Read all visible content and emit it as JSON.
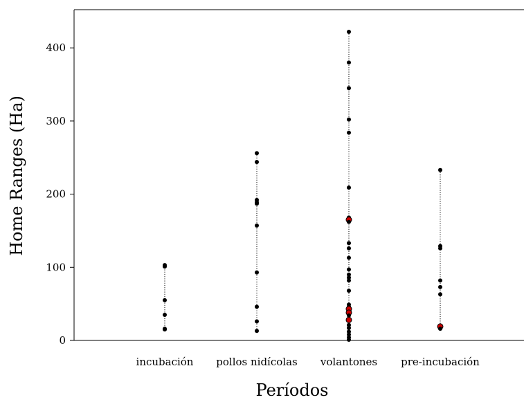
{
  "chart_data": {
    "type": "scatter",
    "title": "",
    "xlabel": "Períodos",
    "ylabel": "Home Ranges (Ha)",
    "categories": [
      "incubación",
      "pollos nidícolas",
      "volantones",
      "pre-incubación"
    ],
    "ylim": [
      0,
      450
    ],
    "yticks": [
      0,
      100,
      200,
      300,
      400
    ],
    "grid": false,
    "colors": {
      "default_point": "#000000",
      "highlight_point": "#cc0000",
      "stem": "#000000"
    },
    "series": [
      {
        "category": "incubación",
        "points": [
          {
            "y": 103,
            "highlight": false
          },
          {
            "y": 101,
            "highlight": false
          },
          {
            "y": 55,
            "highlight": false
          },
          {
            "y": 35,
            "highlight": false
          },
          {
            "y": 16,
            "highlight": false
          },
          {
            "y": 15,
            "highlight": false
          }
        ]
      },
      {
        "category": "pollos nidícolas",
        "points": [
          {
            "y": 256,
            "highlight": false
          },
          {
            "y": 244,
            "highlight": false
          },
          {
            "y": 192,
            "highlight": false
          },
          {
            "y": 189,
            "highlight": false
          },
          {
            "y": 187,
            "highlight": false
          },
          {
            "y": 157,
            "highlight": false
          },
          {
            "y": 93,
            "highlight": false
          },
          {
            "y": 46,
            "highlight": false
          },
          {
            "y": 26,
            "highlight": false
          },
          {
            "y": 13,
            "highlight": false
          }
        ]
      },
      {
        "category": "volantones",
        "points": [
          {
            "y": 422,
            "highlight": false
          },
          {
            "y": 380,
            "highlight": false
          },
          {
            "y": 345,
            "highlight": false
          },
          {
            "y": 302,
            "highlight": false
          },
          {
            "y": 284,
            "highlight": false
          },
          {
            "y": 209,
            "highlight": false
          },
          {
            "y": 168,
            "highlight": false
          },
          {
            "y": 165,
            "highlight": true
          },
          {
            "y": 162,
            "highlight": false
          },
          {
            "y": 133,
            "highlight": false
          },
          {
            "y": 126,
            "highlight": false
          },
          {
            "y": 113,
            "highlight": false
          },
          {
            "y": 97,
            "highlight": false
          },
          {
            "y": 90,
            "highlight": false
          },
          {
            "y": 86,
            "highlight": false
          },
          {
            "y": 82,
            "highlight": false
          },
          {
            "y": 68,
            "highlight": false
          },
          {
            "y": 49,
            "highlight": false
          },
          {
            "y": 46,
            "highlight": false
          },
          {
            "y": 43,
            "highlight": true
          },
          {
            "y": 38,
            "highlight": true
          },
          {
            "y": 34,
            "highlight": false
          },
          {
            "y": 28,
            "highlight": true
          },
          {
            "y": 21,
            "highlight": false
          },
          {
            "y": 17,
            "highlight": false
          },
          {
            "y": 12,
            "highlight": false
          },
          {
            "y": 8,
            "highlight": false
          },
          {
            "y": 4,
            "highlight": false
          },
          {
            "y": 1,
            "highlight": false
          }
        ]
      },
      {
        "category": "pre-incubación",
        "points": [
          {
            "y": 233,
            "highlight": false
          },
          {
            "y": 129,
            "highlight": false
          },
          {
            "y": 126,
            "highlight": false
          },
          {
            "y": 82,
            "highlight": false
          },
          {
            "y": 73,
            "highlight": false
          },
          {
            "y": 63,
            "highlight": false
          },
          {
            "y": 19,
            "highlight": true
          },
          {
            "y": 16,
            "highlight": false
          }
        ]
      }
    ]
  }
}
